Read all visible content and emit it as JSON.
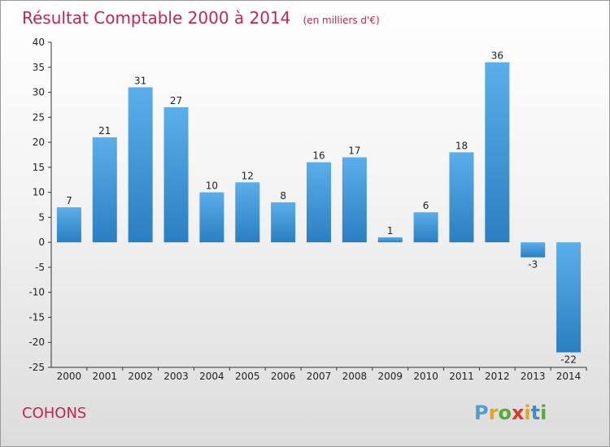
{
  "chart_data": {
    "type": "bar",
    "title": "Résultat Comptable 2000 à 2014",
    "subtitle": "(en milliers d'€)",
    "categories": [
      "2000",
      "2001",
      "2002",
      "2003",
      "2004",
      "2005",
      "2006",
      "2007",
      "2008",
      "2009",
      "2010",
      "2011",
      "2012",
      "2013",
      "2014"
    ],
    "values": [
      7,
      21,
      31,
      27,
      10,
      12,
      8,
      16,
      17,
      1,
      6,
      18,
      36,
      -3,
      -22
    ],
    "ylim": [
      -25,
      40
    ],
    "yticks": [
      40,
      35,
      30,
      25,
      20,
      15,
      10,
      5,
      0,
      -5,
      -10,
      -15,
      -20,
      -25
    ],
    "grid": false,
    "colors": {
      "bar_light": "#5aaeea",
      "bar_dark": "#2a7fc2"
    }
  },
  "footer": {
    "town": "COHONS",
    "brand_letters": [
      "P",
      "r",
      "o",
      "x",
      "i",
      "t",
      "i"
    ],
    "brand_colors": [
      "#4a9fd8",
      "#e8a21f",
      "#5aaa33",
      "#d83a2a",
      "#e8a21f",
      "#3a8fd0",
      "#5aaa33"
    ]
  }
}
